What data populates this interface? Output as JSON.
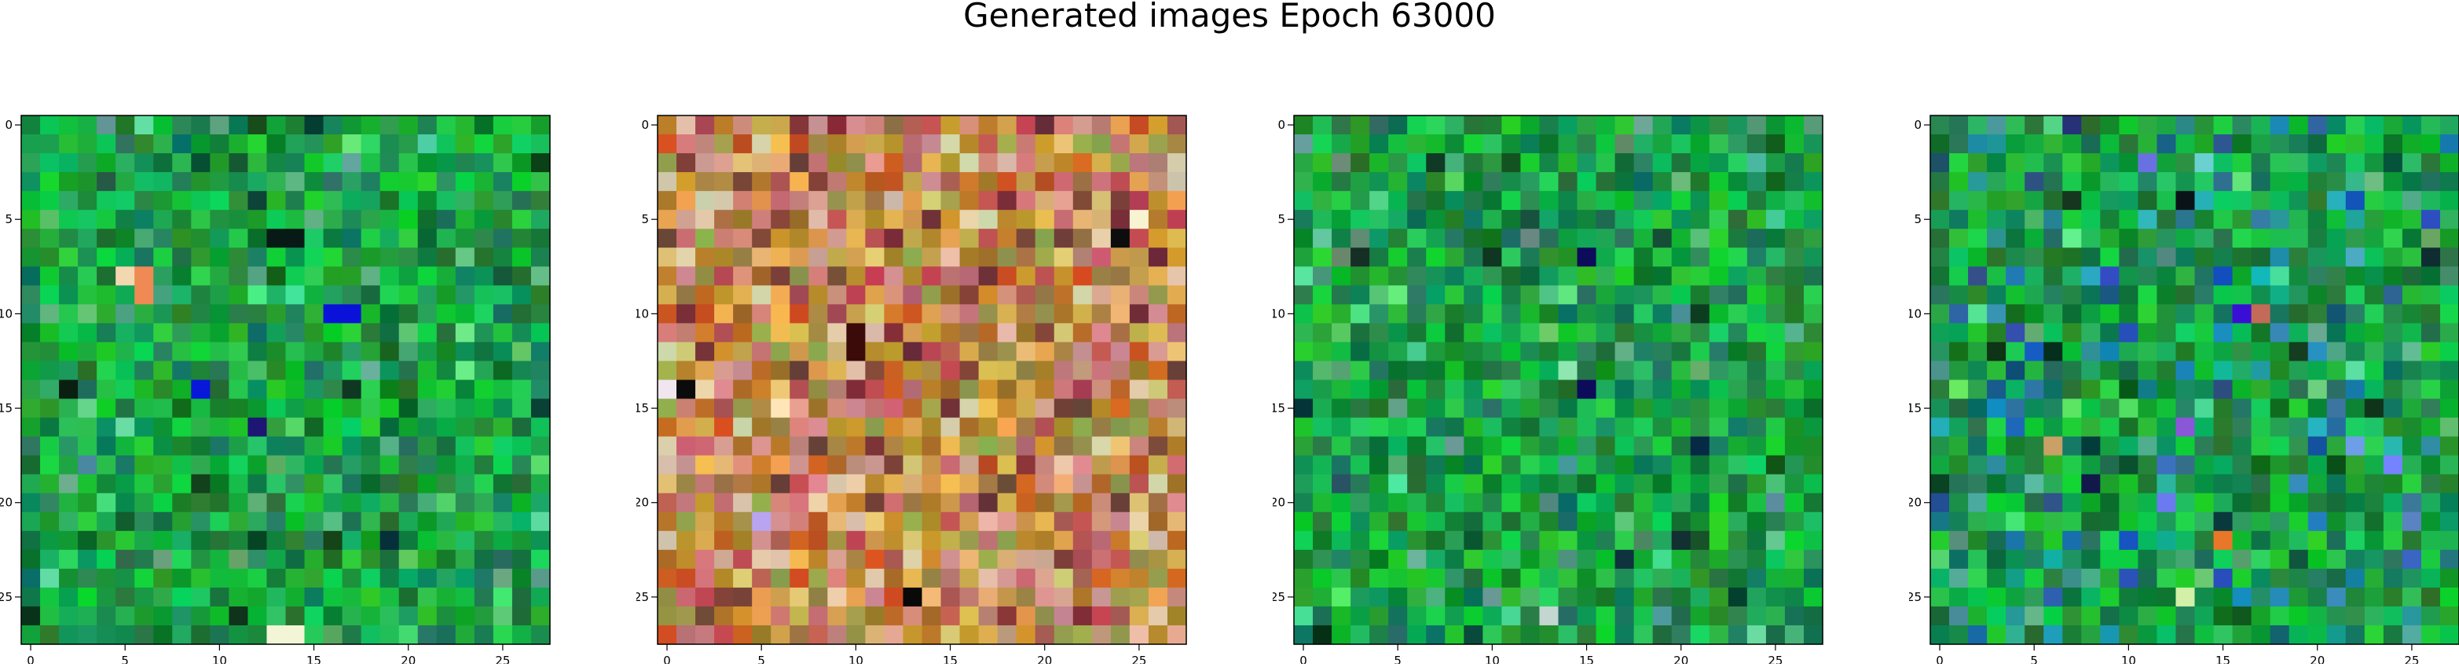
{
  "figure": {
    "title": "Generated images Epoch 63000"
  },
  "chart_data": [
    {
      "type": "heatmap",
      "rows": 28,
      "cols": 28,
      "palette": "green",
      "seed": 11,
      "highlights": [
        {
          "r": 8,
          "c": 5,
          "color": "#f3d7b0"
        },
        {
          "r": 8,
          "c": 6,
          "color": "#ef8a55"
        },
        {
          "r": 9,
          "c": 6,
          "color": "#ef8a55"
        },
        {
          "r": 10,
          "c": 16,
          "color": "#0a12d9"
        },
        {
          "r": 10,
          "c": 17,
          "color": "#0a12d9"
        },
        {
          "r": 14,
          "c": 9,
          "color": "#0818d9"
        },
        {
          "r": 16,
          "c": 12,
          "color": "#1d1672"
        },
        {
          "r": 27,
          "c": 13,
          "color": "#f2f5d6"
        },
        {
          "r": 27,
          "c": 14,
          "color": "#f2f5d6"
        },
        {
          "r": 6,
          "c": 13,
          "color": "#071a16"
        },
        {
          "r": 6,
          "c": 14,
          "color": "#071a16"
        },
        {
          "r": 14,
          "c": 2,
          "color": "#0a1f10"
        }
      ],
      "x_ticks": [
        0,
        5,
        10,
        15,
        20,
        25
      ],
      "y_ticks": [
        0,
        5,
        10,
        15,
        20,
        25
      ]
    },
    {
      "type": "heatmap",
      "rows": 28,
      "cols": 28,
      "palette": "warm",
      "seed": 29,
      "highlights": [
        {
          "r": 6,
          "c": 24,
          "color": "#0d0d0d"
        },
        {
          "r": 5,
          "c": 25,
          "color": "#f8f3d0"
        },
        {
          "r": 14,
          "c": 1,
          "color": "#0b0b0b"
        },
        {
          "r": 14,
          "c": 0,
          "color": "#f1e6f0"
        },
        {
          "r": 25,
          "c": 13,
          "color": "#090909"
        },
        {
          "r": 21,
          "c": 5,
          "color": "#b8a4f0"
        },
        {
          "r": 11,
          "c": 10,
          "color": "#3a0b08"
        },
        {
          "r": 12,
          "c": 10,
          "color": "#3a0b08"
        },
        {
          "r": 15,
          "c": 6,
          "color": "#ffe5b8"
        }
      ],
      "x_ticks": [
        0,
        5,
        10,
        15,
        20,
        25
      ],
      "y_ticks": [
        0,
        5,
        10,
        15,
        20,
        25
      ]
    },
    {
      "type": "heatmap",
      "rows": 28,
      "cols": 28,
      "palette": "green",
      "seed": 47,
      "highlights": [
        {
          "r": 7,
          "c": 15,
          "color": "#0c0c5a"
        },
        {
          "r": 14,
          "c": 15,
          "color": "#0c0c5a"
        },
        {
          "r": 13,
          "c": 14,
          "color": "#8ee6b0"
        },
        {
          "r": 26,
          "c": 13,
          "color": "#c4d6d0"
        },
        {
          "r": 17,
          "c": 21,
          "color": "#062a46"
        },
        {
          "r": 27,
          "c": 1,
          "color": "#063016"
        }
      ],
      "x_ticks": [
        0,
        5,
        10,
        15,
        20,
        25
      ],
      "y_ticks": [
        0,
        5,
        10,
        15,
        20,
        25
      ]
    },
    {
      "type": "heatmap",
      "rows": 28,
      "cols": 28,
      "palette": "green-blue",
      "seed": 83,
      "highlights": [
        {
          "r": 10,
          "c": 16,
          "color": "#3a0fd5"
        },
        {
          "r": 10,
          "c": 17,
          "color": "#c46a58"
        },
        {
          "r": 16,
          "c": 13,
          "color": "#8a57d8"
        },
        {
          "r": 22,
          "c": 15,
          "color": "#e8772a"
        },
        {
          "r": 25,
          "c": 13,
          "color": "#d2f0a8"
        },
        {
          "r": 17,
          "c": 6,
          "color": "#c9a066"
        },
        {
          "r": 4,
          "c": 13,
          "color": "#0a1418"
        },
        {
          "r": 17,
          "c": 22,
          "color": "#6f9ee8"
        }
      ],
      "x_ticks": [
        0,
        5,
        10,
        15,
        20,
        25
      ],
      "y_ticks": [
        0,
        5,
        10,
        15,
        20,
        25
      ]
    }
  ]
}
